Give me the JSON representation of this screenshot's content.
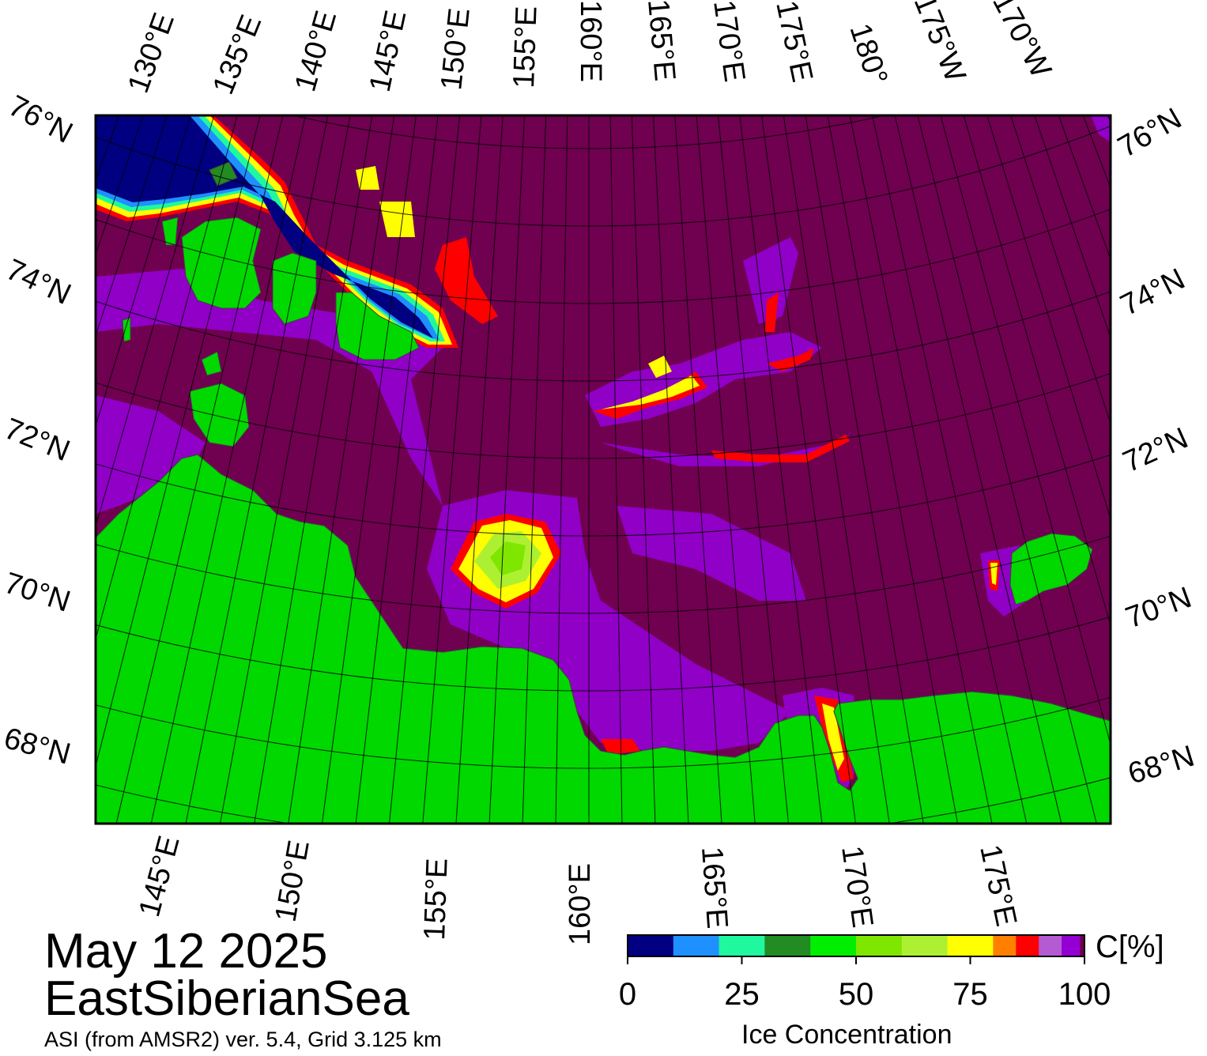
{
  "header": {
    "date": "May 12 2025",
    "region": "EastSiberianSea",
    "product": "ASI (from AMSR2) ver. 5.4,  Grid 3.125 km"
  },
  "map": {
    "top_longitude_labels": [
      "130°E",
      "135°E",
      "140°E",
      "145°E",
      "150°E",
      "155°E",
      "160°E",
      "165°E",
      "170°E",
      "175°E",
      "180°",
      "175°W",
      "170°W"
    ],
    "bottom_longitude_labels": [
      "145°E",
      "150°E",
      "155°E",
      "160°E",
      "165°E",
      "170°E",
      "175°E"
    ],
    "left_latitude_labels": [
      "76°N",
      "74°N",
      "72°N",
      "70°N",
      "68°N"
    ],
    "right_latitude_labels": [
      "76°N",
      "74°N",
      "72°N",
      "70°N",
      "68°N"
    ],
    "colors": {
      "ice_100": "#700050",
      "land": "#00d800",
      "coast_gray": "#808080",
      "open_water": "#00007f"
    }
  },
  "colorbar": {
    "title": "Ice Concentration",
    "unit": "C[%]",
    "tick_labels": [
      "0",
      "25",
      "50",
      "75",
      "100"
    ],
    "bins": [
      {
        "from": 0,
        "to": 10,
        "color": "#000080"
      },
      {
        "from": 10,
        "to": 20,
        "color": "#1e90ff"
      },
      {
        "from": 20,
        "to": 30,
        "color": "#20f8a0"
      },
      {
        "from": 30,
        "to": 40,
        "color": "#228b22"
      },
      {
        "from": 40,
        "to": 50,
        "color": "#00ee00"
      },
      {
        "from": 50,
        "to": 60,
        "color": "#7fe600"
      },
      {
        "from": 60,
        "to": 70,
        "color": "#adf032"
      },
      {
        "from": 70,
        "to": 80,
        "color": "#ffff00"
      },
      {
        "from": 80,
        "to": 85,
        "color": "#ff8000"
      },
      {
        "from": 85,
        "to": 90,
        "color": "#ff0000"
      },
      {
        "from": 90,
        "to": 95,
        "color": "#b45ad2"
      },
      {
        "from": 95,
        "to": 99,
        "color": "#9400d3"
      },
      {
        "from": 99,
        "to": 100,
        "color": "#700050"
      }
    ]
  }
}
